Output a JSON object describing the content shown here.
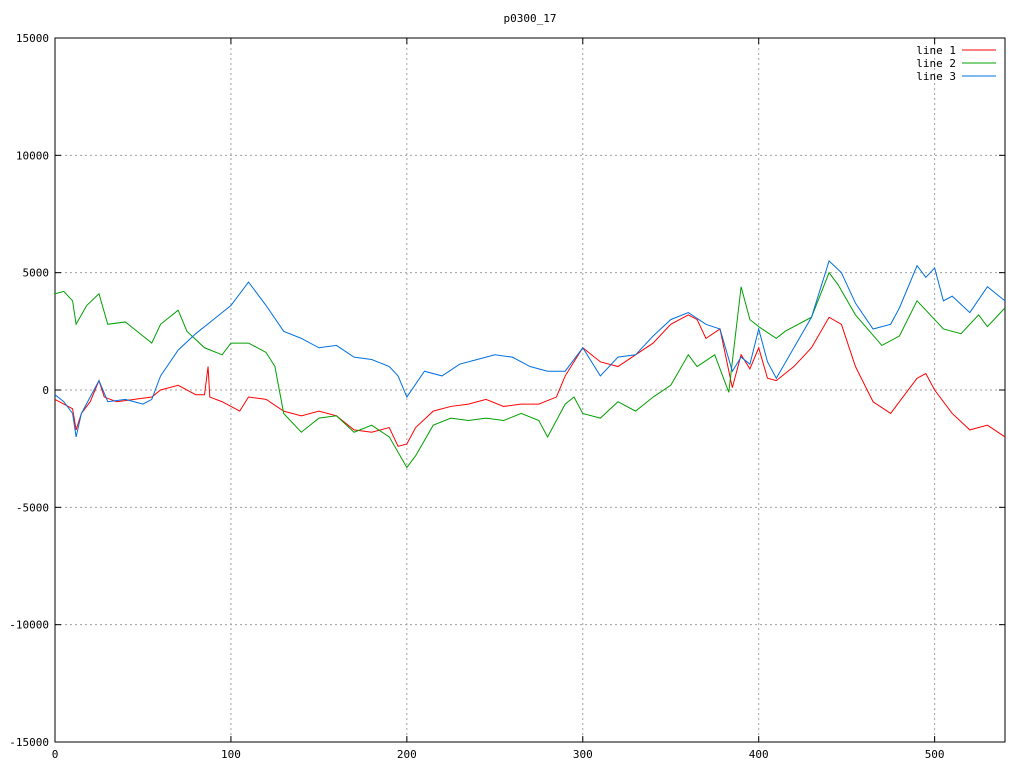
{
  "chart_data": {
    "type": "line",
    "title": "p0300_17",
    "xlabel": "",
    "ylabel": "",
    "xlim": [
      0,
      540
    ],
    "ylim": [
      -15000,
      15000
    ],
    "x_ticks": [
      0,
      100,
      200,
      300,
      400,
      500
    ],
    "y_ticks": [
      -15000,
      -10000,
      -5000,
      0,
      5000,
      10000,
      15000
    ],
    "grid": true,
    "legend_position": "top-right",
    "series": [
      {
        "name": "line 1",
        "color": "#ff0000",
        "points": [
          [
            0,
            -400
          ],
          [
            5,
            -600
          ],
          [
            10,
            -800
          ],
          [
            12,
            -1700
          ],
          [
            15,
            -1000
          ],
          [
            20,
            -500
          ],
          [
            25,
            400
          ],
          [
            28,
            -300
          ],
          [
            35,
            -500
          ],
          [
            45,
            -400
          ],
          [
            55,
            -300
          ],
          [
            60,
            0
          ],
          [
            70,
            200
          ],
          [
            80,
            -200
          ],
          [
            85,
            -200
          ],
          [
            87,
            1000
          ],
          [
            88,
            -300
          ],
          [
            95,
            -500
          ],
          [
            105,
            -900
          ],
          [
            110,
            -300
          ],
          [
            120,
            -400
          ],
          [
            130,
            -900
          ],
          [
            140,
            -1100
          ],
          [
            150,
            -900
          ],
          [
            160,
            -1100
          ],
          [
            170,
            -1700
          ],
          [
            180,
            -1800
          ],
          [
            190,
            -1600
          ],
          [
            195,
            -2400
          ],
          [
            200,
            -2300
          ],
          [
            205,
            -1600
          ],
          [
            215,
            -900
          ],
          [
            225,
            -700
          ],
          [
            235,
            -600
          ],
          [
            245,
            -400
          ],
          [
            255,
            -700
          ],
          [
            265,
            -600
          ],
          [
            275,
            -600
          ],
          [
            285,
            -300
          ],
          [
            290,
            600
          ],
          [
            300,
            1800
          ],
          [
            310,
            1200
          ],
          [
            320,
            1000
          ],
          [
            330,
            1500
          ],
          [
            340,
            2000
          ],
          [
            350,
            2800
          ],
          [
            360,
            3200
          ],
          [
            365,
            3000
          ],
          [
            370,
            2200
          ],
          [
            378,
            2600
          ],
          [
            385,
            100
          ],
          [
            390,
            1500
          ],
          [
            395,
            900
          ],
          [
            400,
            1800
          ],
          [
            405,
            500
          ],
          [
            410,
            400
          ],
          [
            420,
            1000
          ],
          [
            430,
            1800
          ],
          [
            440,
            3100
          ],
          [
            447,
            2800
          ],
          [
            455,
            1000
          ],
          [
            465,
            -500
          ],
          [
            475,
            -1000
          ],
          [
            480,
            -500
          ],
          [
            490,
            500
          ],
          [
            495,
            700
          ],
          [
            500,
            0
          ],
          [
            510,
            -1000
          ],
          [
            520,
            -1700
          ],
          [
            530,
            -1500
          ],
          [
            540,
            -2000
          ]
        ]
      },
      {
        "name": "line 2",
        "color": "#00a000",
        "points": [
          [
            0,
            4100
          ],
          [
            5,
            4200
          ],
          [
            10,
            3800
          ],
          [
            12,
            2800
          ],
          [
            18,
            3600
          ],
          [
            25,
            4100
          ],
          [
            30,
            2800
          ],
          [
            40,
            2900
          ],
          [
            50,
            2300
          ],
          [
            55,
            2000
          ],
          [
            60,
            2800
          ],
          [
            70,
            3400
          ],
          [
            75,
            2500
          ],
          [
            85,
            1800
          ],
          [
            95,
            1500
          ],
          [
            100,
            2000
          ],
          [
            110,
            2000
          ],
          [
            120,
            1600
          ],
          [
            125,
            1000
          ],
          [
            130,
            -1000
          ],
          [
            140,
            -1800
          ],
          [
            150,
            -1200
          ],
          [
            160,
            -1100
          ],
          [
            170,
            -1800
          ],
          [
            180,
            -1500
          ],
          [
            190,
            -2000
          ],
          [
            200,
            -3300
          ],
          [
            205,
            -2800
          ],
          [
            215,
            -1500
          ],
          [
            225,
            -1200
          ],
          [
            235,
            -1300
          ],
          [
            245,
            -1200
          ],
          [
            255,
            -1300
          ],
          [
            265,
            -1000
          ],
          [
            275,
            -1300
          ],
          [
            280,
            -2000
          ],
          [
            290,
            -600
          ],
          [
            295,
            -300
          ],
          [
            300,
            -1000
          ],
          [
            310,
            -1200
          ],
          [
            320,
            -500
          ],
          [
            330,
            -900
          ],
          [
            340,
            -300
          ],
          [
            350,
            200
          ],
          [
            360,
            1500
          ],
          [
            365,
            1000
          ],
          [
            375,
            1500
          ],
          [
            383,
            -100
          ],
          [
            385,
            1200
          ],
          [
            390,
            4400
          ],
          [
            395,
            3000
          ],
          [
            400,
            2700
          ],
          [
            410,
            2200
          ],
          [
            415,
            2500
          ],
          [
            430,
            3100
          ],
          [
            440,
            5000
          ],
          [
            445,
            4500
          ],
          [
            455,
            3200
          ],
          [
            470,
            1900
          ],
          [
            480,
            2300
          ],
          [
            490,
            3800
          ],
          [
            495,
            3400
          ],
          [
            505,
            2600
          ],
          [
            515,
            2400
          ],
          [
            525,
            3200
          ],
          [
            530,
            2700
          ],
          [
            540,
            3500
          ]
        ]
      },
      {
        "name": "line 3",
        "color": "#0070e0",
        "points": [
          [
            0,
            -200
          ],
          [
            5,
            -500
          ],
          [
            10,
            -1000
          ],
          [
            12,
            -2000
          ],
          [
            15,
            -1000
          ],
          [
            20,
            -300
          ],
          [
            25,
            400
          ],
          [
            30,
            -500
          ],
          [
            40,
            -400
          ],
          [
            50,
            -600
          ],
          [
            55,
            -400
          ],
          [
            60,
            600
          ],
          [
            70,
            1700
          ],
          [
            80,
            2400
          ],
          [
            90,
            3000
          ],
          [
            100,
            3600
          ],
          [
            110,
            4600
          ],
          [
            120,
            3600
          ],
          [
            130,
            2500
          ],
          [
            140,
            2200
          ],
          [
            150,
            1800
          ],
          [
            160,
            1900
          ],
          [
            170,
            1400
          ],
          [
            180,
            1300
          ],
          [
            190,
            1000
          ],
          [
            195,
            600
          ],
          [
            200,
            -300
          ],
          [
            210,
            800
          ],
          [
            220,
            600
          ],
          [
            230,
            1100
          ],
          [
            240,
            1300
          ],
          [
            250,
            1500
          ],
          [
            260,
            1400
          ],
          [
            270,
            1000
          ],
          [
            280,
            800
          ],
          [
            290,
            800
          ],
          [
            300,
            1800
          ],
          [
            310,
            600
          ],
          [
            320,
            1400
          ],
          [
            330,
            1500
          ],
          [
            340,
            2300
          ],
          [
            350,
            3000
          ],
          [
            360,
            3300
          ],
          [
            370,
            2800
          ],
          [
            378,
            2600
          ],
          [
            385,
            800
          ],
          [
            390,
            1400
          ],
          [
            395,
            1100
          ],
          [
            400,
            2600
          ],
          [
            405,
            1200
          ],
          [
            410,
            500
          ],
          [
            420,
            1800
          ],
          [
            430,
            3100
          ],
          [
            440,
            5500
          ],
          [
            447,
            5000
          ],
          [
            455,
            3700
          ],
          [
            465,
            2600
          ],
          [
            475,
            2800
          ],
          [
            480,
            3500
          ],
          [
            490,
            5300
          ],
          [
            495,
            4800
          ],
          [
            500,
            5200
          ],
          [
            505,
            3800
          ],
          [
            510,
            4000
          ],
          [
            520,
            3300
          ],
          [
            530,
            4400
          ],
          [
            540,
            3800
          ]
        ]
      }
    ]
  }
}
